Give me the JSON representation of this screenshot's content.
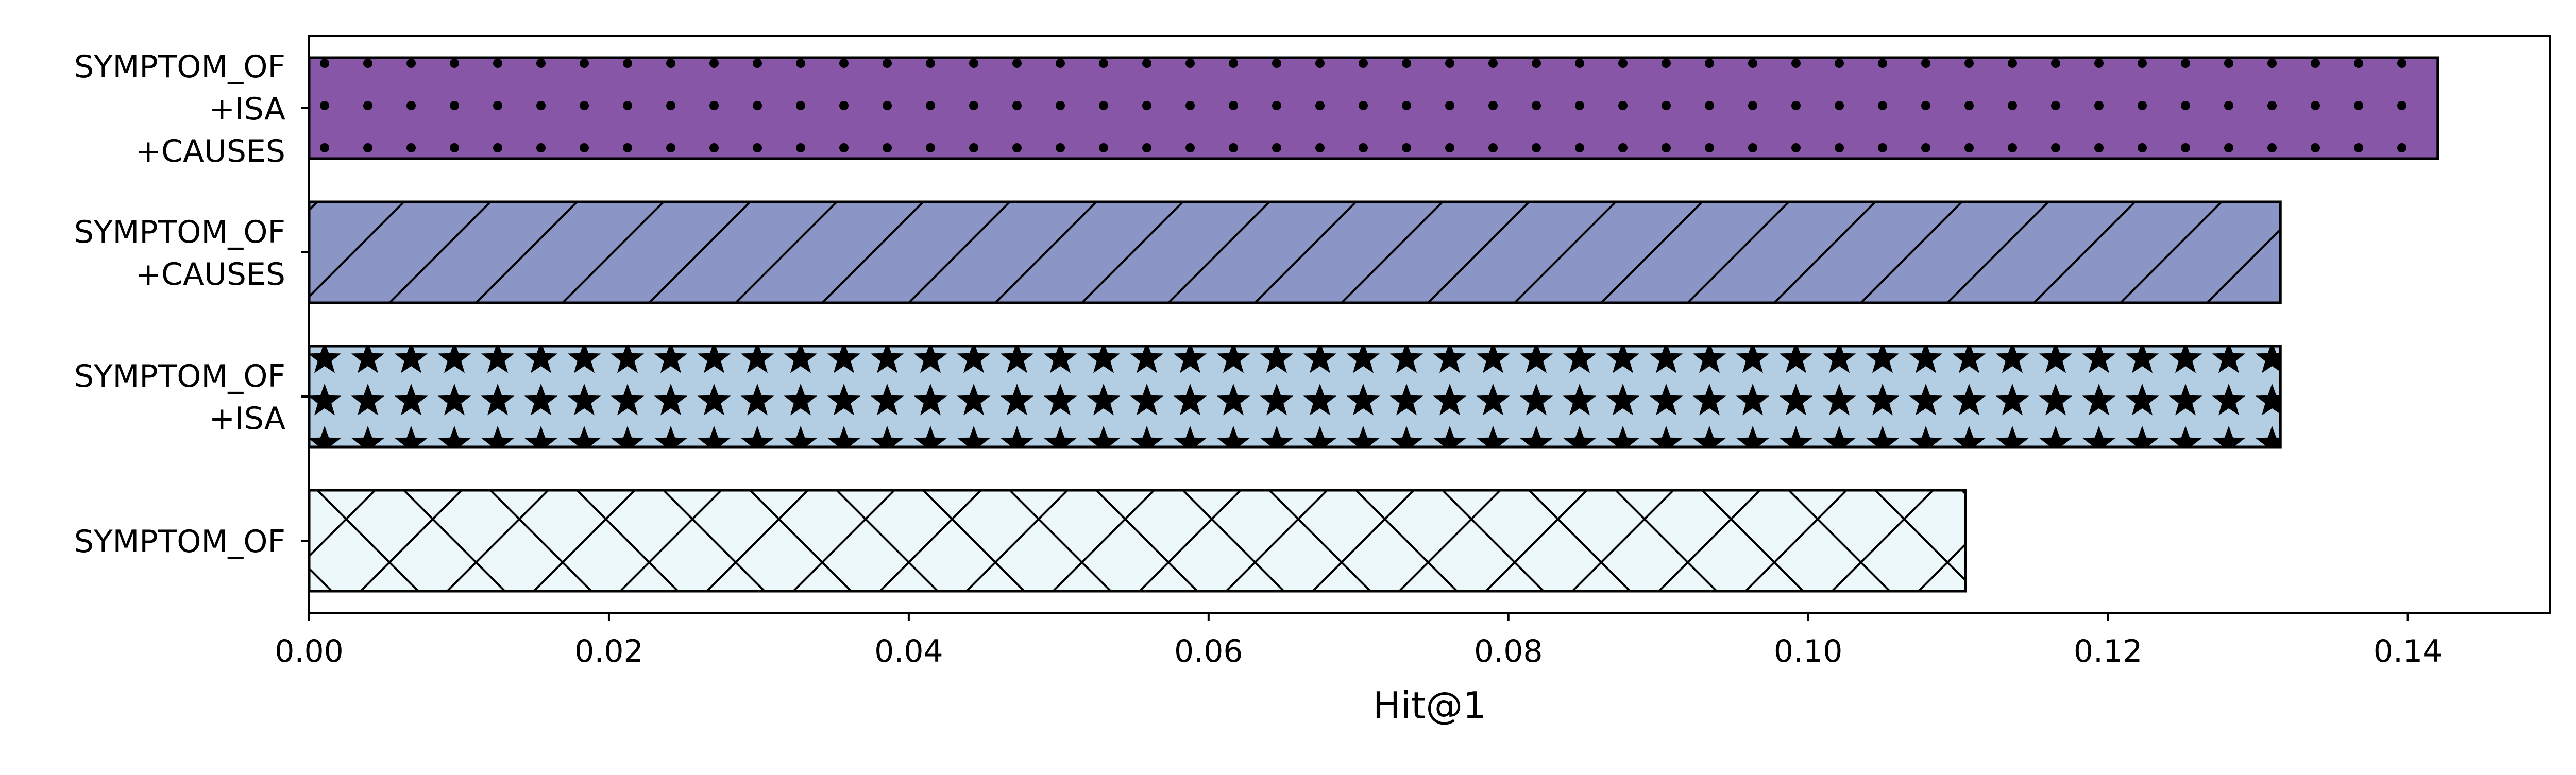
{
  "chart_data": {
    "type": "bar",
    "orientation": "horizontal",
    "title": "",
    "xlabel": "Hit@1",
    "ylabel": "",
    "xlim": [
      0,
      0.1495
    ],
    "xticks": [
      0.0,
      0.02,
      0.04,
      0.06,
      0.08,
      0.1,
      0.12,
      0.14
    ],
    "xtick_labels": [
      "0.00",
      "0.02",
      "0.04",
      "0.06",
      "0.08",
      "0.10",
      "0.12",
      "0.14"
    ],
    "grid": false,
    "legend": "none",
    "categories": [
      {
        "lines": [
          "SYMPTOM_OF",
          "+ISA",
          "+CAUSES"
        ],
        "value": 0.142,
        "color": "#8856a7",
        "pattern": "dots"
      },
      {
        "lines": [
          "SYMPTOM_OF",
          "+CAUSES"
        ],
        "value": 0.1315,
        "color": "#8c96c6",
        "pattern": "slash"
      },
      {
        "lines": [
          "SYMPTOM_OF",
          "+ISA"
        ],
        "value": 0.1315,
        "color": "#b3cde3",
        "pattern": "stars"
      },
      {
        "lines": [
          "SYMPTOM_OF"
        ],
        "value": 0.1105,
        "color": "#edf8fb",
        "pattern": "crosshatch"
      }
    ]
  }
}
